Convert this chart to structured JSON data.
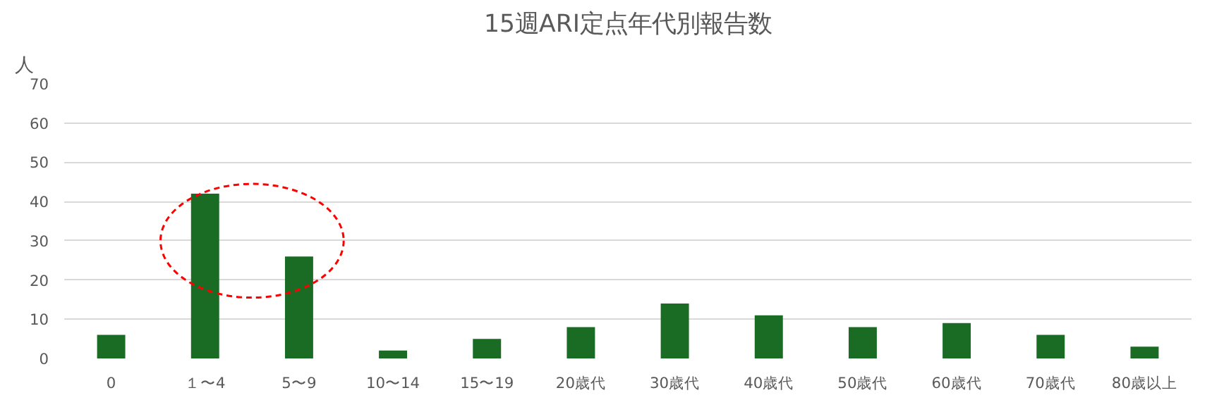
{
  "chart_data": {
    "type": "bar",
    "title": "15週ARI定点年代別報告数",
    "ylabel": "人",
    "categories": [
      "0",
      "１〜4",
      "5〜9",
      "10〜14",
      "15〜19",
      "20歳代",
      "30歳代",
      "40歳代",
      "50歳代",
      "60歳代",
      "70歳代",
      "80歳以上"
    ],
    "values": [
      6,
      42,
      26,
      2,
      5,
      8,
      14,
      11,
      8,
      9,
      6,
      3
    ],
    "color": "#1a6b24",
    "ylim": [
      0,
      70
    ],
    "yticks": [
      0,
      10,
      20,
      30,
      40,
      50,
      60,
      70
    ],
    "grid": "y"
  }
}
